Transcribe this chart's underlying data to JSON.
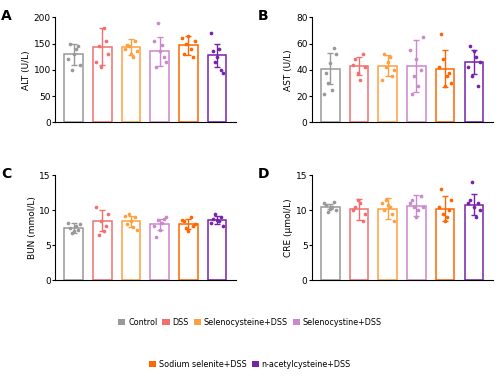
{
  "groups": [
    "Control",
    "DSS",
    "Selenocysteine+DSS",
    "Selenocystine+DSS",
    "Sodium selenite+DSS",
    "n-acetylcysteine+DSS"
  ],
  "colors": [
    "#999999",
    "#f07070",
    "#ffa040",
    "#cc88cc",
    "#ff6600",
    "#7722aa"
  ],
  "ALT": {
    "means": [
      130,
      144,
      143,
      135,
      147,
      128
    ],
    "sems": [
      20,
      35,
      15,
      28,
      18,
      22
    ],
    "dots": [
      [
        100,
        110,
        120,
        130,
        140,
        145,
        150
      ],
      [
        105,
        115,
        130,
        145,
        155,
        180
      ],
      [
        125,
        130,
        135,
        140,
        145,
        148,
        155
      ],
      [
        105,
        115,
        125,
        135,
        148,
        155,
        190
      ],
      [
        125,
        130,
        140,
        150,
        155,
        160,
        165
      ],
      [
        95,
        100,
        115,
        125,
        135,
        140,
        170
      ]
    ],
    "ylabel": "ALT (U/L)",
    "ylim": [
      0,
      200
    ],
    "yticks": [
      0,
      50,
      100,
      150,
      200
    ],
    "label": "A"
  },
  "AST": {
    "means": [
      41,
      43,
      43,
      43,
      41,
      46
    ],
    "sems": [
      12,
      7,
      8,
      20,
      14,
      9
    ],
    "dots": [
      [
        22,
        25,
        30,
        38,
        45,
        52,
        57
      ],
      [
        32,
        38,
        42,
        44,
        48,
        52
      ],
      [
        32,
        35,
        40,
        42,
        46,
        50,
        52
      ],
      [
        22,
        28,
        35,
        40,
        48,
        55,
        65
      ],
      [
        28,
        30,
        35,
        38,
        42,
        48,
        67
      ],
      [
        28,
        35,
        42,
        46,
        50,
        54,
        58
      ]
    ],
    "ylabel": "AST (U/L)",
    "ylim": [
      0,
      80
    ],
    "yticks": [
      0,
      20,
      40,
      60,
      80
    ],
    "label": "B"
  },
  "BUN": {
    "means": [
      7.5,
      8.5,
      8.4,
      8.0,
      8.0,
      8.6
    ],
    "sems": [
      0.7,
      1.5,
      0.8,
      0.8,
      0.7,
      0.6
    ],
    "dots": [
      [
        6.8,
        7.0,
        7.2,
        7.5,
        7.8,
        8.0,
        8.2
      ],
      [
        6.5,
        7.0,
        7.8,
        8.5,
        9.5,
        10.5
      ],
      [
        7.2,
        7.6,
        8.0,
        8.5,
        9.0,
        9.2,
        9.5
      ],
      [
        6.2,
        7.2,
        7.8,
        8.2,
        8.6,
        8.8,
        9.0
      ],
      [
        7.0,
        7.4,
        7.8,
        8.0,
        8.4,
        8.6,
        9.0
      ],
      [
        7.8,
        8.2,
        8.5,
        8.6,
        8.8,
        9.0,
        9.5
      ]
    ],
    "ylabel": "BUN (mmol/L)",
    "ylim": [
      0,
      15
    ],
    "yticks": [
      0,
      5,
      10,
      15
    ],
    "label": "C"
  },
  "CRE": {
    "means": [
      10.5,
      10.1,
      10.2,
      10.6,
      10.2,
      10.8
    ],
    "sems": [
      0.4,
      1.5,
      1.5,
      1.5,
      1.8,
      1.5
    ],
    "dots": [
      [
        9.8,
        10.0,
        10.2,
        10.5,
        10.8,
        11.0,
        11.2
      ],
      [
        8.5,
        9.5,
        10.0,
        10.5,
        11.0,
        11.5
      ],
      [
        8.5,
        9.5,
        10.0,
        10.5,
        10.8,
        11.0,
        11.5
      ],
      [
        9.0,
        10.0,
        10.5,
        10.5,
        11.0,
        11.5,
        12.0
      ],
      [
        8.5,
        9.0,
        9.5,
        10.0,
        10.5,
        11.5,
        13.0
      ],
      [
        9.0,
        10.0,
        10.5,
        11.0,
        11.0,
        11.5,
        14.0
      ]
    ],
    "ylabel": "CRE (μmol/L)",
    "ylim": [
      0,
      15
    ],
    "yticks": [
      0,
      5,
      10,
      15
    ],
    "label": "D"
  },
  "legend_labels": [
    "Control",
    "DSS",
    "Selenocysteine+DSS",
    "Selenocystine+DSS",
    "Sodium selenite+DSS",
    "n-acetylcysteine+DSS"
  ],
  "bar_width": 0.55,
  "bar_edgewidth": 1.1
}
